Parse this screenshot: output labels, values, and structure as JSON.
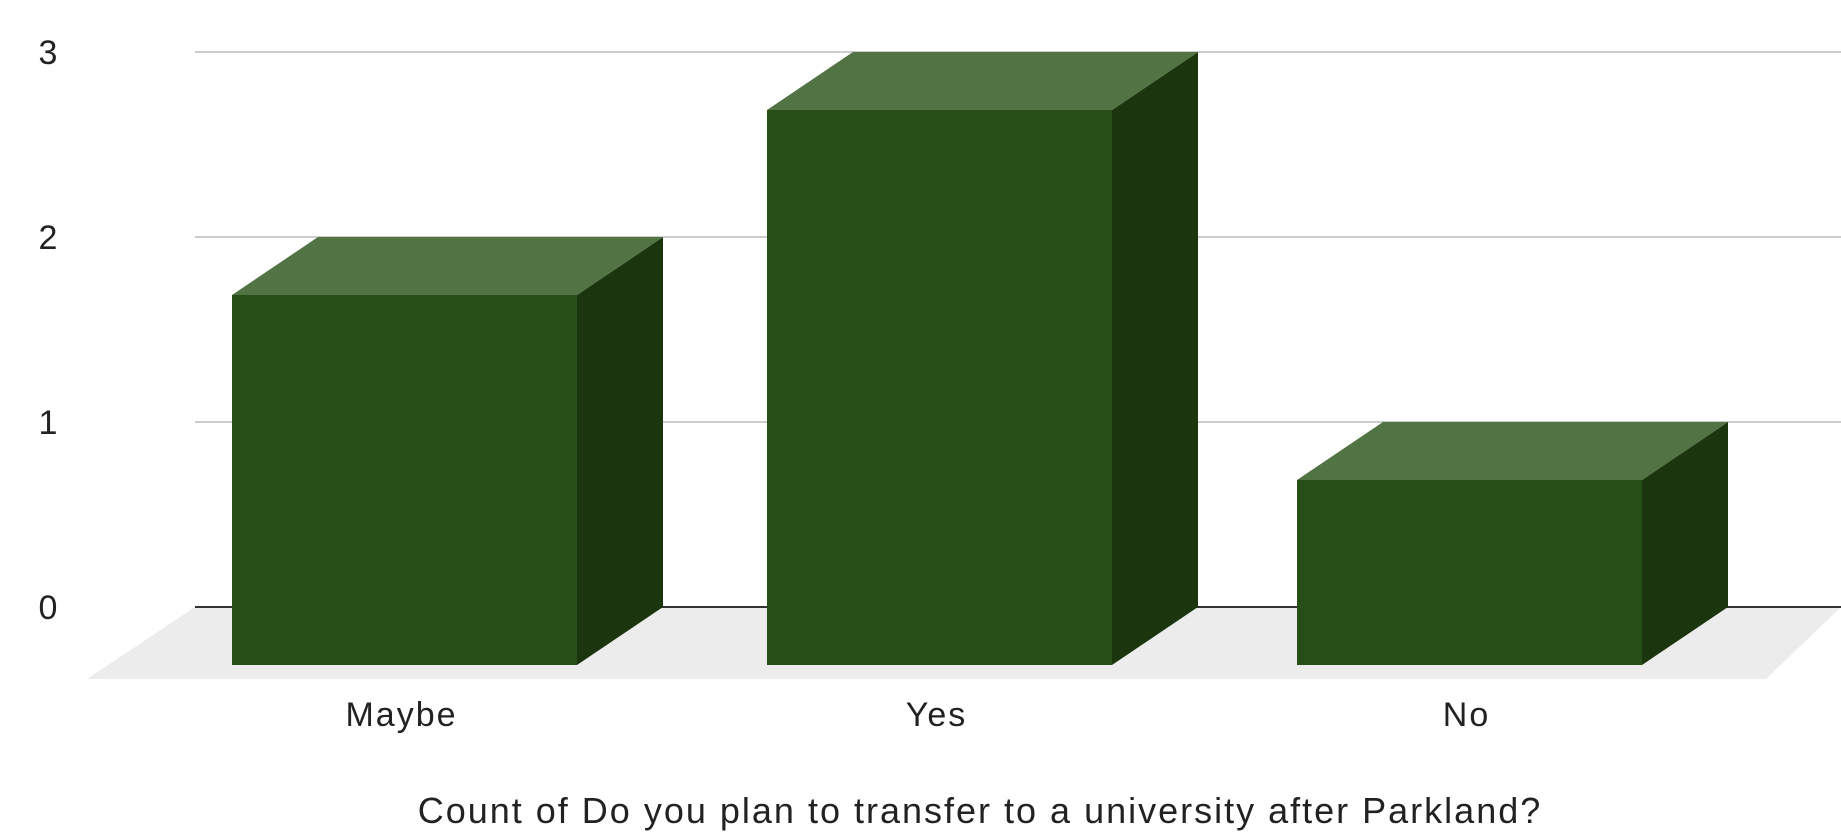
{
  "chart_data": {
    "type": "bar",
    "style": "3d",
    "categories": [
      "Maybe",
      "Yes",
      "No"
    ],
    "values": [
      2,
      3,
      1
    ],
    "title": "",
    "xlabel": "Count of Do you plan to transfer to a university after Parkland?",
    "ylabel": "",
    "ylim": [
      0,
      3
    ],
    "yticks": [
      "0",
      "1",
      "2",
      "3"
    ],
    "grid": true,
    "legend": "none",
    "colors": {
      "bar_front": "#284e17",
      "bar_top": "#527343",
      "bar_side": "#1b350e",
      "floor": "#ececec",
      "gridline": "#cccccc",
      "baseline": "#333333"
    }
  }
}
